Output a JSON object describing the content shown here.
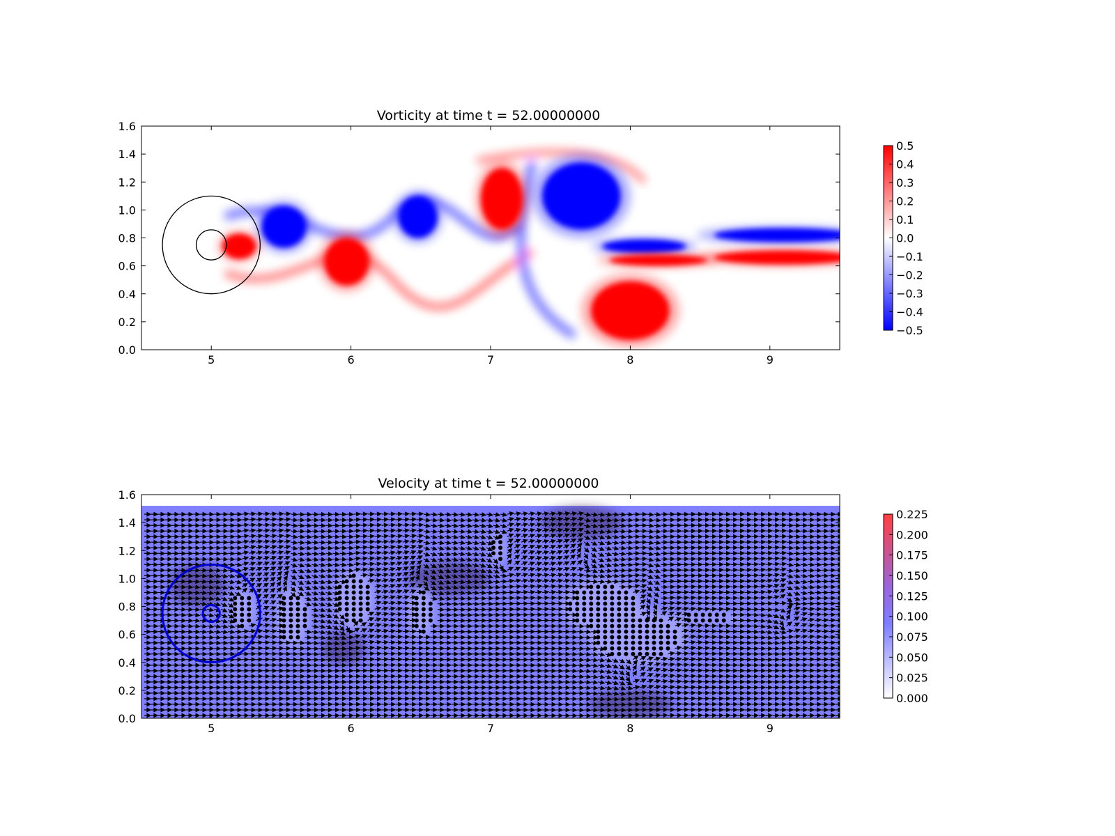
{
  "chart_data": [
    {
      "type": "heatmap",
      "title": "Vorticity at time t =    52.00000000",
      "xlim": [
        4.5,
        9.5
      ],
      "ylim": [
        0.0,
        1.6
      ],
      "xticks": [
        "5",
        "6",
        "7",
        "8",
        "9"
      ],
      "yticks": [
        "0.0",
        "0.2",
        "0.4",
        "0.6",
        "0.8",
        "1.0",
        "1.2",
        "1.4",
        "1.6"
      ],
      "colormap": "bwr",
      "colors": {
        "low": "#0000ff",
        "mid": "#ffffff",
        "high": "#ff0000"
      },
      "colorbar": {
        "range": [
          -0.5,
          0.5
        ],
        "ticks": [
          "0.5",
          "0.4",
          "0.3",
          "0.2",
          "0.1",
          "0.0",
          "−0.1",
          "−0.2",
          "−0.3",
          "−0.4",
          "−0.5"
        ]
      },
      "body": {
        "center": [
          5.0,
          0.75
        ],
        "radius": 0.08
      },
      "outer_circle": {
        "center": [
          5.0,
          0.75
        ],
        "radius": 0.35
      },
      "vortices": [
        {
          "x": 5.52,
          "y": 0.88,
          "rx": 0.16,
          "ry": 0.15,
          "sign": -1
        },
        {
          "x": 5.2,
          "y": 0.74,
          "rx": 0.12,
          "ry": 0.09,
          "sign": 1
        },
        {
          "x": 5.97,
          "y": 0.63,
          "rx": 0.16,
          "ry": 0.17,
          "sign": 1
        },
        {
          "x": 6.48,
          "y": 0.95,
          "rx": 0.14,
          "ry": 0.15,
          "sign": -1
        },
        {
          "x": 7.08,
          "y": 1.08,
          "rx": 0.15,
          "ry": 0.22,
          "sign": 1
        },
        {
          "x": 7.65,
          "y": 1.1,
          "rx": 0.28,
          "ry": 0.24,
          "sign": -1
        },
        {
          "x": 8.0,
          "y": 0.28,
          "rx": 0.28,
          "ry": 0.21,
          "sign": 1
        },
        {
          "x": 8.1,
          "y": 0.74,
          "rx": 0.3,
          "ry": 0.05,
          "sign": -1
        },
        {
          "x": 8.2,
          "y": 0.64,
          "rx": 0.35,
          "ry": 0.04,
          "sign": 1
        },
        {
          "x": 9.1,
          "y": 0.82,
          "rx": 0.5,
          "ry": 0.05,
          "sign": -1
        },
        {
          "x": 9.1,
          "y": 0.66,
          "rx": 0.5,
          "ry": 0.05,
          "sign": 1
        }
      ]
    },
    {
      "type": "quiver",
      "title": "Velocity at time t =    52.00000000",
      "xlim": [
        4.5,
        9.5
      ],
      "ylim": [
        0.0,
        1.6
      ],
      "xticks": [
        "5",
        "6",
        "7",
        "8",
        "9"
      ],
      "yticks": [
        "0.0",
        "0.2",
        "0.4",
        "0.6",
        "0.8",
        "1.0",
        "1.2",
        "1.4",
        "1.6"
      ],
      "field_top": 1.52,
      "free_stream_speed": 0.1,
      "colors": {
        "low": "#ffffff",
        "mid": "#7f7fff",
        "high": "#ff4040",
        "arrow": "#000000"
      },
      "colorbar": {
        "range": [
          0.0,
          0.225
        ],
        "ticks": [
          "0.225",
          "0.200",
          "0.175",
          "0.150",
          "0.125",
          "0.100",
          "0.075",
          "0.050",
          "0.025",
          "0.000"
        ]
      },
      "body": {
        "center": [
          5.0,
          0.75
        ],
        "radius": 0.06
      },
      "outer_circle": {
        "center": [
          5.0,
          0.75
        ],
        "radius": 0.35
      },
      "stagnation_regions": [
        {
          "x": 5.22,
          "y": 0.78,
          "rx": 0.08,
          "ry": 0.12
        },
        {
          "x": 5.58,
          "y": 0.72,
          "rx": 0.1,
          "ry": 0.18
        },
        {
          "x": 6.02,
          "y": 0.85,
          "rx": 0.12,
          "ry": 0.18
        },
        {
          "x": 6.5,
          "y": 0.76,
          "rx": 0.08,
          "ry": 0.15
        },
        {
          "x": 7.05,
          "y": 1.22,
          "rx": 0.05,
          "ry": 0.1
        },
        {
          "x": 7.8,
          "y": 0.8,
          "rx": 0.24,
          "ry": 0.16
        },
        {
          "x": 8.05,
          "y": 0.58,
          "rx": 0.3,
          "ry": 0.16
        },
        {
          "x": 8.55,
          "y": 0.72,
          "rx": 0.22,
          "ry": 0.03
        }
      ]
    }
  ]
}
